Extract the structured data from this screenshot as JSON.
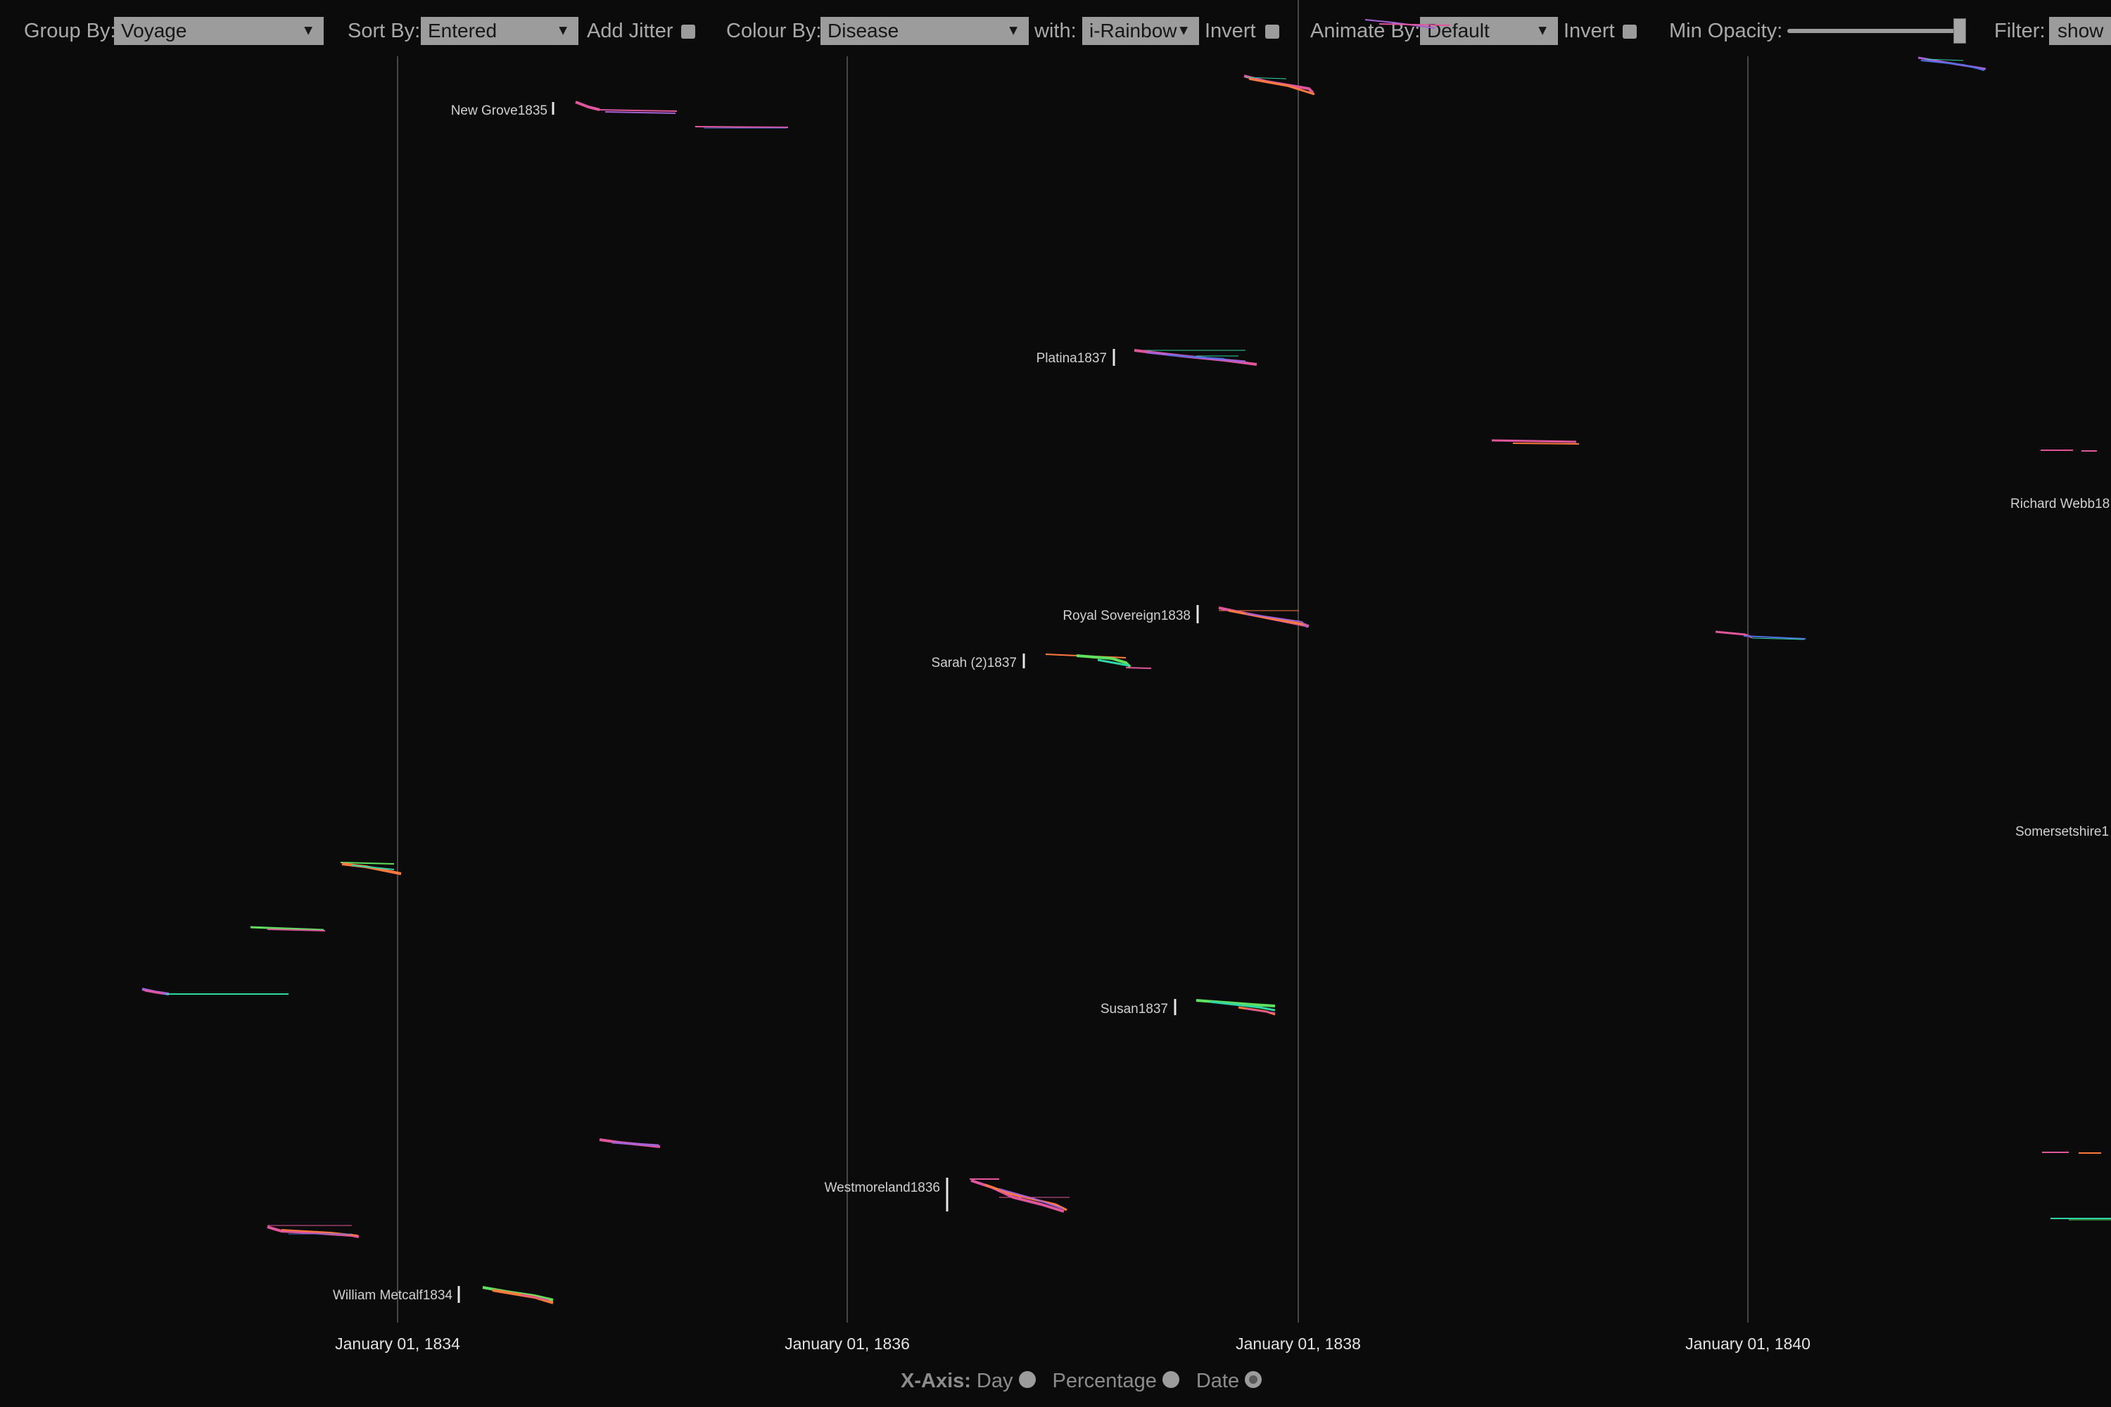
{
  "toolbar": {
    "group_by_label": "Group By:",
    "group_by_value": "Voyage",
    "sort_by_label": "Sort By:",
    "sort_by_value": "Entered",
    "add_jitter_label": "Add Jitter",
    "colour_by_label": "Colour By:",
    "colour_by_value": "Disease",
    "with_label": "with:",
    "with_value": "i-Rainbow",
    "invert_label": "Invert",
    "animate_by_label": "Animate By:",
    "animate_by_value": "Default",
    "animate_invert_label": "Invert",
    "min_opacity_label": "Min Opacity:",
    "min_opacity_value": 1.0,
    "filter_label": "Filter:",
    "filter_value": "show"
  },
  "axis": {
    "ticks": [
      "January 01, 1834",
      "January 01, 1836",
      "January 01, 1838",
      "January 01, 1840"
    ]
  },
  "voyage_labels": [
    "New Grove1835",
    "Platina1837",
    "Richard Webb18",
    "Royal Sovereign1838",
    "Sarah (2)1837",
    "Somersetshire1",
    "Susan1837",
    "Westmoreland1836",
    "William Metcalf1834"
  ],
  "x_axis_mode": {
    "label": "X-Axis:",
    "options": [
      "Day",
      "Percentage",
      "Date"
    ],
    "selected": "Date"
  },
  "colors": {
    "background": "#0b0b0b",
    "gridline": "#4a4a4a",
    "pink": "#e0569c",
    "orange": "#ff7a3d",
    "green": "#5fe05f",
    "teal": "#2fd6a6",
    "purple": "#a561d6",
    "blue": "#4f6fe0"
  }
}
